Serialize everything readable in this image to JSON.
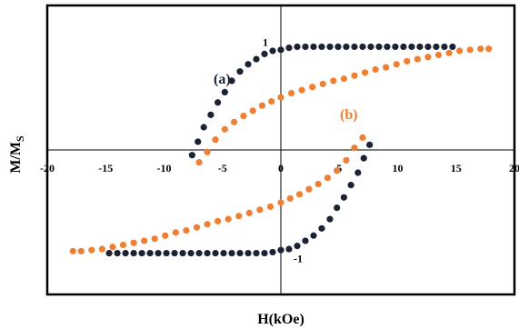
{
  "chart_data": {
    "type": "scatter",
    "xlabel": "H(kOe)",
    "ylabel_main": "M/M",
    "ylabel_sub": "S",
    "xlim": [
      -20,
      20
    ],
    "ylim": [
      -1.4,
      1.4
    ],
    "x_ticks": [
      "-20",
      "-15",
      "-10",
      "-5",
      "0",
      "5",
      "10",
      "15",
      "20"
    ],
    "y_tick_labels": [
      {
        "value": 1,
        "text": "1"
      },
      {
        "value": -1,
        "text": "-1"
      }
    ],
    "grid": false,
    "series": [
      {
        "name": "(a)",
        "color": "#1a2233",
        "upper": [
          [
            -7.6,
            -0.05
          ],
          [
            -7.1,
            0.08
          ],
          [
            -6.6,
            0.22
          ],
          [
            -6.0,
            0.34
          ],
          [
            -5.4,
            0.46
          ],
          [
            -4.8,
            0.56
          ],
          [
            -4.2,
            0.67
          ],
          [
            -3.5,
            0.76
          ],
          [
            -2.8,
            0.83
          ],
          [
            -2.1,
            0.88
          ],
          [
            -1.4,
            0.93
          ],
          [
            -0.7,
            0.96
          ],
          [
            0.0,
            0.97
          ],
          [
            0.7,
            0.99
          ],
          [
            1.4,
            1.0
          ],
          [
            2.1,
            1.0
          ],
          [
            2.8,
            1.0
          ],
          [
            3.5,
            1.0
          ],
          [
            4.2,
            1.0
          ],
          [
            4.9,
            1.0
          ],
          [
            5.6,
            1.0
          ],
          [
            6.3,
            1.0
          ],
          [
            7.0,
            1.0
          ],
          [
            7.7,
            1.0
          ],
          [
            8.4,
            1.0
          ],
          [
            9.1,
            1.0
          ],
          [
            9.8,
            1.0
          ],
          [
            10.5,
            1.0
          ],
          [
            11.2,
            1.0
          ],
          [
            11.9,
            1.0
          ],
          [
            12.6,
            1.0
          ],
          [
            13.3,
            1.0
          ],
          [
            14.0,
            1.0
          ],
          [
            14.7,
            1.0
          ]
        ],
        "lower": [
          [
            7.6,
            0.05
          ],
          [
            7.1,
            -0.08
          ],
          [
            6.6,
            -0.22
          ],
          [
            6.0,
            -0.34
          ],
          [
            5.4,
            -0.46
          ],
          [
            4.8,
            -0.56
          ],
          [
            4.2,
            -0.67
          ],
          [
            3.5,
            -0.76
          ],
          [
            2.8,
            -0.83
          ],
          [
            2.1,
            -0.88
          ],
          [
            1.4,
            -0.93
          ],
          [
            0.7,
            -0.96
          ],
          [
            0.0,
            -0.97
          ],
          [
            -0.7,
            -0.99
          ],
          [
            -1.4,
            -1.0
          ],
          [
            -2.1,
            -1.0
          ],
          [
            -2.8,
            -1.0
          ],
          [
            -3.5,
            -1.0
          ],
          [
            -4.2,
            -1.0
          ],
          [
            -4.9,
            -1.0
          ],
          [
            -5.6,
            -1.0
          ],
          [
            -6.3,
            -1.0
          ],
          [
            -7.0,
            -1.0
          ],
          [
            -7.7,
            -1.0
          ],
          [
            -8.4,
            -1.0
          ],
          [
            -9.1,
            -1.0
          ],
          [
            -9.8,
            -1.0
          ],
          [
            -10.5,
            -1.0
          ],
          [
            -11.2,
            -1.0
          ],
          [
            -11.9,
            -1.0
          ],
          [
            -12.6,
            -1.0
          ],
          [
            -13.3,
            -1.0
          ],
          [
            -14.0,
            -1.0
          ],
          [
            -14.7,
            -1.0
          ]
        ]
      },
      {
        "name": "(b)",
        "color": "#ee8033",
        "upper": [
          [
            -7.0,
            -0.12
          ],
          [
            -6.3,
            -0.02
          ],
          [
            -5.6,
            0.1
          ],
          [
            -4.8,
            0.2
          ],
          [
            -4.0,
            0.27
          ],
          [
            -3.2,
            0.33
          ],
          [
            -2.4,
            0.38
          ],
          [
            -1.6,
            0.43
          ],
          [
            -0.8,
            0.47
          ],
          [
            0.0,
            0.51
          ],
          [
            0.9,
            0.55
          ],
          [
            1.8,
            0.58
          ],
          [
            2.7,
            0.61
          ],
          [
            3.6,
            0.64
          ],
          [
            4.5,
            0.67
          ],
          [
            5.4,
            0.69
          ],
          [
            6.3,
            0.72
          ],
          [
            7.2,
            0.75
          ],
          [
            8.1,
            0.78
          ],
          [
            9.0,
            0.8
          ],
          [
            9.9,
            0.83
          ],
          [
            10.8,
            0.86
          ],
          [
            11.7,
            0.88
          ],
          [
            12.6,
            0.9
          ],
          [
            13.5,
            0.92
          ],
          [
            14.4,
            0.94
          ],
          [
            15.3,
            0.96
          ],
          [
            16.2,
            0.97
          ],
          [
            17.1,
            0.98
          ],
          [
            17.8,
            0.98
          ]
        ],
        "lower": [
          [
            7.0,
            0.12
          ],
          [
            6.3,
            0.02
          ],
          [
            5.6,
            -0.1
          ],
          [
            4.8,
            -0.2
          ],
          [
            4.0,
            -0.27
          ],
          [
            3.2,
            -0.33
          ],
          [
            2.4,
            -0.38
          ],
          [
            1.6,
            -0.43
          ],
          [
            0.8,
            -0.47
          ],
          [
            0.0,
            -0.51
          ],
          [
            -0.9,
            -0.55
          ],
          [
            -1.8,
            -0.58
          ],
          [
            -2.7,
            -0.61
          ],
          [
            -3.6,
            -0.64
          ],
          [
            -4.5,
            -0.67
          ],
          [
            -5.4,
            -0.69
          ],
          [
            -6.3,
            -0.72
          ],
          [
            -7.2,
            -0.75
          ],
          [
            -8.1,
            -0.78
          ],
          [
            -9.0,
            -0.8
          ],
          [
            -9.9,
            -0.83
          ],
          [
            -10.8,
            -0.86
          ],
          [
            -11.7,
            -0.88
          ],
          [
            -12.6,
            -0.9
          ],
          [
            -13.5,
            -0.92
          ],
          [
            -14.4,
            -0.94
          ],
          [
            -15.3,
            -0.96
          ],
          [
            -16.2,
            -0.97
          ],
          [
            -17.1,
            -0.98
          ],
          [
            -17.8,
            -0.98
          ]
        ]
      }
    ]
  }
}
